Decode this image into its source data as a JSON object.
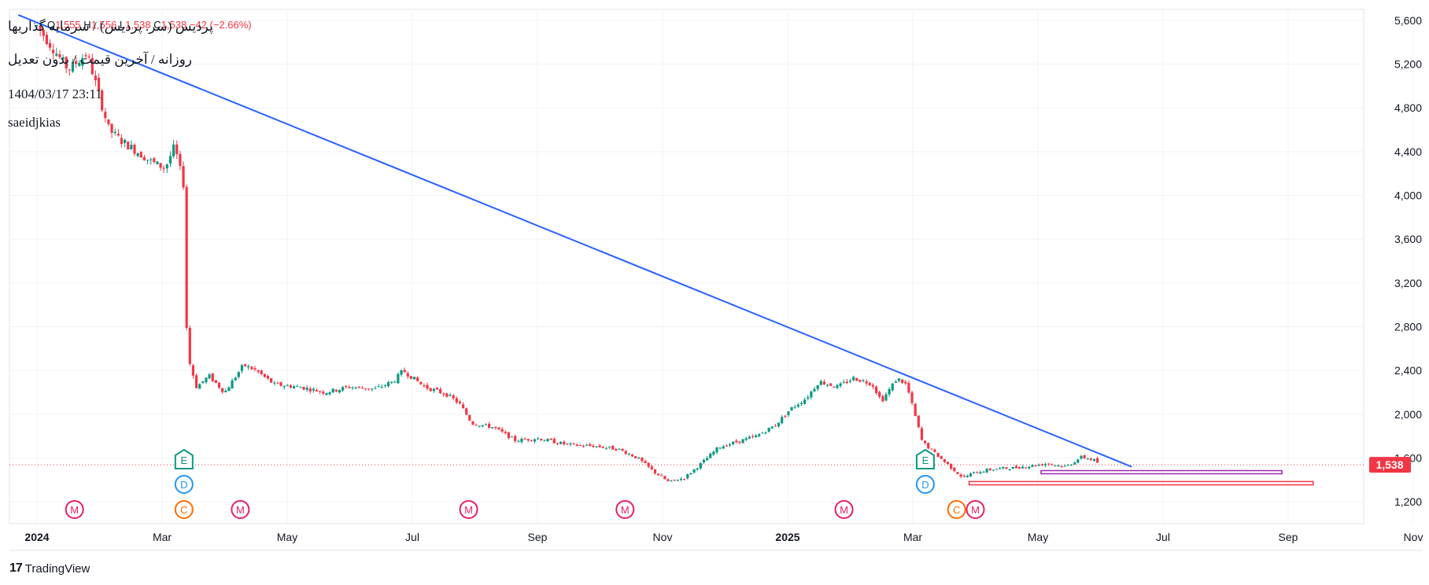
{
  "header": {
    "symbol_title": "پردیس (سر. پردیس) / سرمایه گذاریها",
    "subtitle": "روزانه / آخرین قیمت / بدون تعدیل",
    "timestamp": "1404/03/17 23:11",
    "author": "saeidjkias",
    "ohlc": {
      "o_label": "O",
      "o_value": "1,555",
      "h_label": "H",
      "h_value": "1,556",
      "l_label": "L",
      "l_value": "1,538",
      "c_label": "C",
      "c_value": "1,538",
      "change": "−42 (−2.66%)"
    }
  },
  "footer": {
    "brand": "TradingView"
  },
  "colors": {
    "up": "#089981",
    "down": "#f23645",
    "trendline": "#2962ff",
    "box_purple": "#9c27b0",
    "box_red": "#f23645",
    "grid": "#f0f3fa",
    "axis_text": "#131722",
    "price_label_bg": "#f23645"
  },
  "chart_data": {
    "type": "candlestick",
    "title": "پردیس (سر. پردیس) / سرمایه گذاریها",
    "interval": "daily",
    "last_price": 1538,
    "last_price_label": "1,538",
    "y_ticks": [
      1200,
      1600,
      2000,
      2400,
      2800,
      3200,
      3600,
      4000,
      4400,
      4800,
      5200,
      5600
    ],
    "y_tick_labels": [
      "1,200",
      "1,600",
      "2,000",
      "2,400",
      "2,800",
      "3,200",
      "3,600",
      "4,000",
      "4,400",
      "4,800",
      "5,200",
      "5,600"
    ],
    "ylim": [
      1000,
      5700
    ],
    "x_ticks": [
      {
        "label": "2024",
        "month": 0,
        "bold": true
      },
      {
        "label": "Mar",
        "month": 2
      },
      {
        "label": "May",
        "month": 4
      },
      {
        "label": "Jul",
        "month": 6
      },
      {
        "label": "Sep",
        "month": 8
      },
      {
        "label": "Nov",
        "month": 10
      },
      {
        "label": "2025",
        "month": 12,
        "bold": true
      },
      {
        "label": "Mar",
        "month": 14
      },
      {
        "label": "May",
        "month": 16
      },
      {
        "label": "Jul",
        "month": 18
      },
      {
        "label": "Sep",
        "month": 20
      },
      {
        "label": "Nov",
        "month": 22
      }
    ],
    "price_path": [
      [
        0.0,
        5550
      ],
      [
        0.5,
        5150
      ],
      [
        0.8,
        5300
      ],
      [
        1.0,
        4900
      ],
      [
        1.15,
        4600
      ],
      [
        1.35,
        4500
      ],
      [
        1.6,
        4400
      ],
      [
        1.85,
        4300
      ],
      [
        2.05,
        4250
      ],
      [
        2.2,
        4450
      ],
      [
        2.35,
        4080
      ],
      [
        2.4,
        2550
      ],
      [
        2.55,
        2250
      ],
      [
        2.75,
        2350
      ],
      [
        3.0,
        2200
      ],
      [
        3.3,
        2450
      ],
      [
        3.5,
        2400
      ],
      [
        3.8,
        2270
      ],
      [
        4.2,
        2250
      ],
      [
        4.6,
        2200
      ],
      [
        5.0,
        2250
      ],
      [
        5.4,
        2230
      ],
      [
        5.7,
        2300
      ],
      [
        5.85,
        2400
      ],
      [
        6.2,
        2250
      ],
      [
        6.55,
        2180
      ],
      [
        6.75,
        2100
      ],
      [
        6.95,
        1920
      ],
      [
        7.3,
        1880
      ],
      [
        7.65,
        1760
      ],
      [
        8.0,
        1780
      ],
      [
        8.5,
        1720
      ],
      [
        8.9,
        1710
      ],
      [
        9.3,
        1680
      ],
      [
        9.6,
        1600
      ],
      [
        9.85,
        1480
      ],
      [
        10.1,
        1380
      ],
      [
        10.35,
        1420
      ],
      [
        10.6,
        1540
      ],
      [
        10.9,
        1700
      ],
      [
        11.2,
        1750
      ],
      [
        11.5,
        1800
      ],
      [
        11.8,
        1900
      ],
      [
        12.05,
        2050
      ],
      [
        12.3,
        2150
      ],
      [
        12.5,
        2300
      ],
      [
        12.8,
        2250
      ],
      [
        13.05,
        2330
      ],
      [
        13.35,
        2280
      ],
      [
        13.5,
        2120
      ],
      [
        13.75,
        2330
      ],
      [
        13.9,
        2270
      ],
      [
        14.15,
        1750
      ],
      [
        14.4,
        1620
      ],
      [
        14.6,
        1520
      ],
      [
        14.8,
        1420
      ],
      [
        15.0,
        1470
      ],
      [
        15.3,
        1500
      ],
      [
        15.6,
        1510
      ],
      [
        15.9,
        1530
      ],
      [
        16.15,
        1550
      ],
      [
        16.45,
        1520
      ],
      [
        16.7,
        1610
      ],
      [
        16.9,
        1580
      ],
      [
        17.0,
        1538
      ]
    ],
    "trendline": {
      "from": {
        "month": -0.3,
        "price": 5650
      },
      "to": {
        "month": 17.5,
        "price": 1520
      }
    },
    "boxes": [
      {
        "name": "purple-zone",
        "from_month": 16.05,
        "to_month": 19.9,
        "top": 1485,
        "bottom": 1460,
        "color": "#9c27b0"
      },
      {
        "name": "red-zone",
        "from_month": 14.9,
        "to_month": 20.4,
        "top": 1385,
        "bottom": 1355,
        "color": "#f23645"
      }
    ],
    "markers": [
      {
        "label": "M",
        "month": 0.6,
        "row": 3,
        "color": "#e91e63"
      },
      {
        "label": "E",
        "month": 2.35,
        "row": 1,
        "color": "#089981",
        "shape": "pentagon"
      },
      {
        "label": "D",
        "month": 2.35,
        "row": 2,
        "color": "#2196f3"
      },
      {
        "label": "C",
        "month": 2.35,
        "row": 3,
        "color": "#ff6d00"
      },
      {
        "label": "M",
        "month": 3.25,
        "row": 3,
        "color": "#e91e63"
      },
      {
        "label": "M",
        "month": 6.9,
        "row": 3,
        "color": "#e91e63"
      },
      {
        "label": "M",
        "month": 9.4,
        "row": 3,
        "color": "#e91e63"
      },
      {
        "label": "M",
        "month": 12.9,
        "row": 3,
        "color": "#e91e63"
      },
      {
        "label": "E",
        "month": 14.2,
        "row": 1,
        "color": "#089981",
        "shape": "pentagon"
      },
      {
        "label": "D",
        "month": 14.2,
        "row": 2,
        "color": "#2196f3"
      },
      {
        "label": "C",
        "month": 14.7,
        "row": 3,
        "color": "#ff6d00"
      },
      {
        "label": "M",
        "month": 15.0,
        "row": 3,
        "color": "#e91e63"
      }
    ]
  }
}
